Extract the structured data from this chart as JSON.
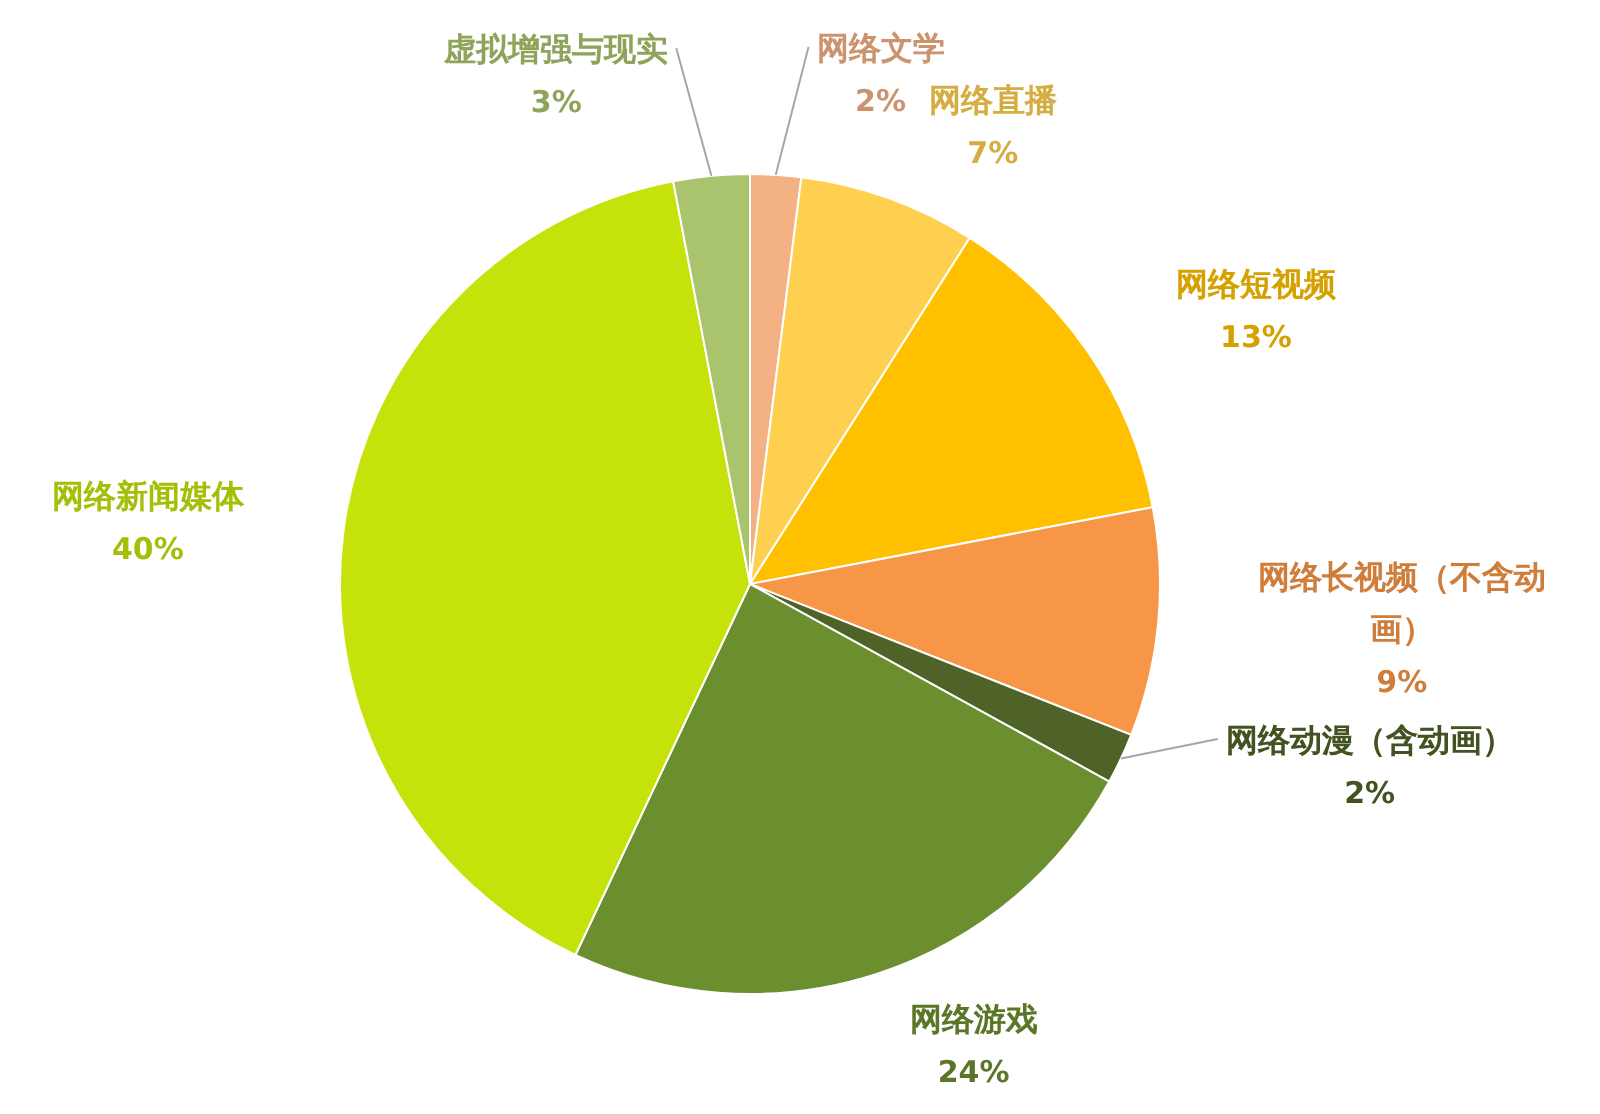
{
  "chart_data": {
    "type": "pie",
    "categories": [
      "网络文学",
      "网络直播",
      "网络短视频",
      "网络长视频（不含动画）",
      "网络动漫（含动画）",
      "网络游戏",
      "网络新闻媒体",
      "虚拟增强与现实"
    ],
    "values": [
      2,
      7,
      13,
      9,
      2,
      24,
      40,
      3
    ],
    "value_labels": [
      "2%",
      "7%",
      "13%",
      "9%",
      "2%",
      "24%",
      "40%",
      "3%"
    ],
    "colors": [
      "#f4b183",
      "#ffd050",
      "#ffc000",
      "#f79646",
      "#4f6228",
      "#6b8e2f",
      "#c5e30a",
      "#a9c46c"
    ]
  }
}
